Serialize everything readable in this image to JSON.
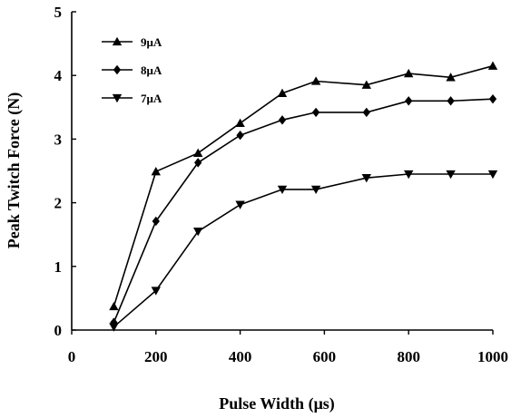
{
  "chart_data": {
    "type": "line",
    "xlabel": "Pulse Width (μs)",
    "ylabel": "Peak Twitch Force (N)",
    "xlim": [
      0,
      1000
    ],
    "ylim": [
      0,
      5
    ],
    "xticks": [
      0,
      200,
      400,
      600,
      800,
      1000
    ],
    "yticks": [
      0,
      1,
      2,
      3,
      4,
      5
    ],
    "grid": false,
    "legend_position": "top-left",
    "series": [
      {
        "name": "9μA",
        "marker": "triangle-up",
        "x": [
          100,
          200,
          300,
          400,
          500,
          580,
          700,
          800,
          900,
          1000
        ],
        "y": [
          0.37,
          2.49,
          2.78,
          3.25,
          3.72,
          3.91,
          3.85,
          4.03,
          3.97,
          4.15
        ]
      },
      {
        "name": "8μA",
        "marker": "diamond",
        "x": [
          100,
          200,
          300,
          400,
          500,
          580,
          700,
          800,
          900,
          1000
        ],
        "y": [
          0.12,
          1.71,
          2.63,
          3.06,
          3.3,
          3.42,
          3.42,
          3.6,
          3.6,
          3.63
        ]
      },
      {
        "name": "7μA",
        "marker": "triangle-down",
        "x": [
          100,
          200,
          300,
          400,
          500,
          580,
          700,
          800,
          900,
          1000
        ],
        "y": [
          0.05,
          0.62,
          1.55,
          1.97,
          2.21,
          2.21,
          2.39,
          2.45,
          2.45,
          2.45
        ]
      }
    ]
  }
}
